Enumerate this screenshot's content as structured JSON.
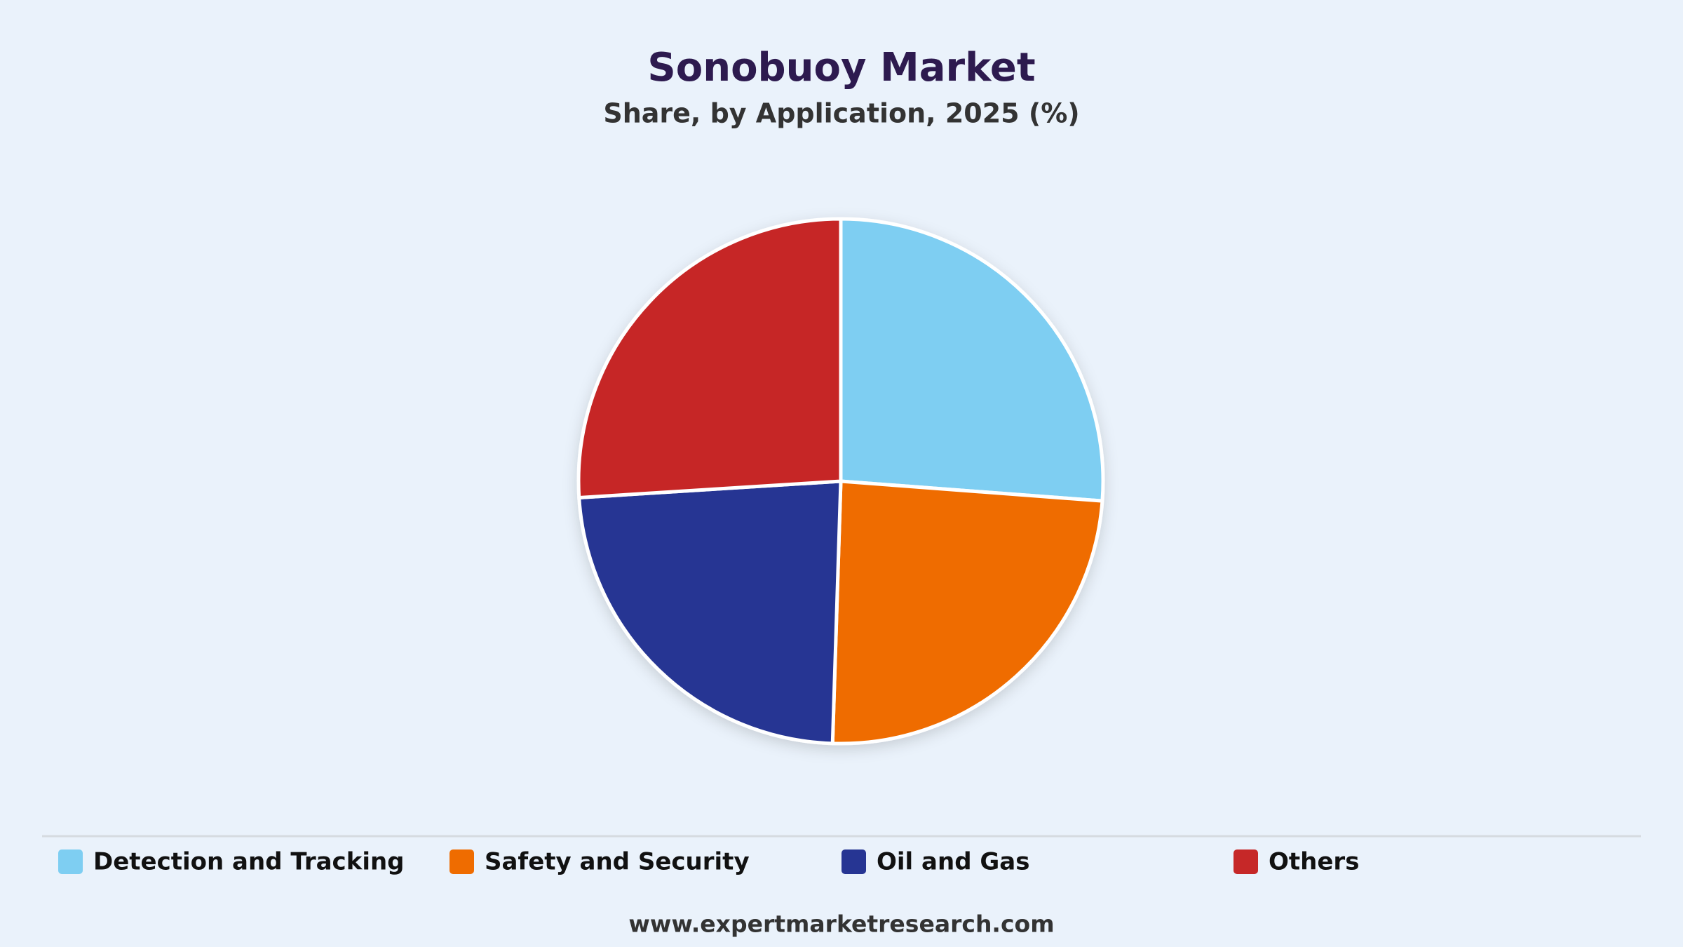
{
  "chart_data": {
    "type": "pie",
    "title": "Sonobuoy Market",
    "subtitle": "Share, by Application, 2025 (%)",
    "categories": [
      "Detection and Tracking",
      "Safety and Security",
      "Oil and Gas",
      "Others"
    ],
    "values": [
      26.2,
      24.3,
      23.5,
      26.0
    ],
    "colors": [
      "#7ecef2",
      "#ef6c00",
      "#263593",
      "#c62828"
    ],
    "footer": "www.expertmarketresearch.com"
  }
}
